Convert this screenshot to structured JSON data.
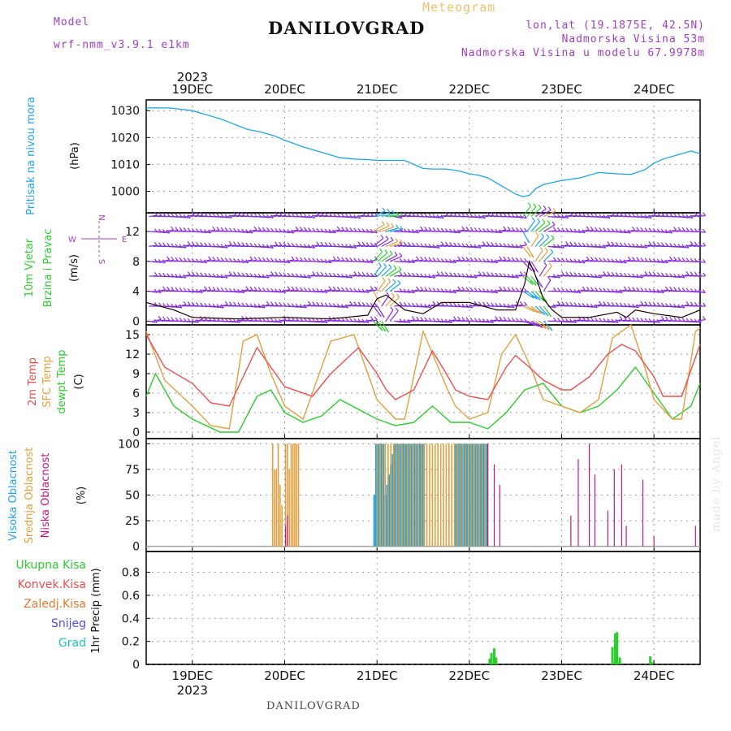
{
  "header": {
    "model_label": "Model",
    "model_name": "wrf-nmm_v3.9.1 e1km",
    "title": "DANILOVGRAD",
    "meteogram": "Meteogram",
    "lonlat": "lon,lat (19.1875E, 42.5N)",
    "elevation": "Nadmorska Visina 53m",
    "model_elevation": "Nadmorska Visina u modelu 67.9978m"
  },
  "footer": {
    "station": "DANILOVGRAD",
    "credit": "made by Angel"
  },
  "colors": {
    "pressure": "#1fa3e8",
    "temp2m": "#e85050",
    "sfc": "#e0a040",
    "dewpt": "#2ecc2e",
    "high_cloud": "#1fa3e8",
    "mid_cloud": "#e0a040",
    "low_cloud": "#c01880",
    "total_precip": "#2ecc2e",
    "conv_precip": "#e85050",
    "frozen": "#e07a30",
    "snow": "#5050e0",
    "hail": "#20c0c0",
    "wind_purple": "#8a2be2",
    "grid": "#9a9a9a"
  },
  "chart_data": {
    "type": "line",
    "x_axis": {
      "year": "2023",
      "ticks": [
        "19DEC",
        "20DEC",
        "21DEC",
        "22DEC",
        "23DEC",
        "24DEC"
      ],
      "range_days": [
        18.5,
        24.5
      ]
    },
    "panels": [
      {
        "id": "pressure",
        "ylabel": [
          "Pritisak na nivou mora",
          "(hPa)"
        ],
        "ylim": [
          992,
          1034
        ],
        "yticks": [
          1000,
          1010,
          1020,
          1030
        ],
        "series": [
          {
            "name": "Pritisak na nivou mora",
            "x": [
              18.5,
              18.6,
              18.75,
              19.0,
              19.15,
              19.3,
              19.45,
              19.6,
              19.75,
              19.9,
              20.0,
              20.2,
              20.4,
              20.6,
              20.75,
              20.9,
              21.0,
              21.2,
              21.3,
              21.5,
              21.6,
              21.75,
              21.9,
              22.0,
              22.1,
              22.2,
              22.3,
              22.4,
              22.5,
              22.58,
              22.65,
              22.72,
              22.8,
              23.0,
              23.2,
              23.4,
              23.6,
              23.75,
              23.9,
              24.0,
              24.1,
              24.3,
              24.4,
              24.5
            ],
            "values": [
              1031,
              1031,
              1031,
              1030,
              1028.5,
              1027,
              1025,
              1023,
              1022,
              1020.5,
              1019,
              1016.5,
              1014.5,
              1012.5,
              1012,
              1011.8,
              1011.5,
              1011.5,
              1011.5,
              1008.5,
              1008.3,
              1008.3,
              1007.5,
              1006.5,
              1006,
              1005,
              1003,
              1001,
              999,
              998,
              998.5,
              1001,
              1002.5,
              1004,
              1005,
              1007,
              1006.5,
              1006.3,
              1008,
              1010.5,
              1012,
              1014,
              1015,
              1014
            ]
          }
        ]
      },
      {
        "id": "wind",
        "ylabel": [
          "10m Vjetar",
          "Brzina i Pravac",
          "(m/s)"
        ],
        "compass": [
          "N",
          "W",
          "E",
          "S"
        ],
        "ylim": [
          -0.5,
          14.5
        ],
        "yticks": [
          0,
          4,
          8,
          12
        ],
        "barb_levels": [
          0,
          2,
          4,
          6,
          8,
          10,
          12,
          14
        ],
        "series": [
          {
            "name": "10m wind speed",
            "x": [
              18.5,
              18.8,
              19.0,
              19.5,
              20.0,
              20.5,
              20.9,
              21.0,
              21.1,
              21.3,
              21.5,
              21.7,
              22.0,
              22.3,
              22.5,
              22.6,
              22.65,
              22.72,
              22.8,
              22.9,
              23.0,
              23.3,
              23.6,
              23.7,
              23.8,
              24.0,
              24.3,
              24.5
            ],
            "values": [
              2.5,
              1.5,
              0.5,
              0.3,
              0.5,
              0.3,
              0.8,
              3,
              3.5,
              1.5,
              1,
              2.5,
              2.5,
              1.5,
              1.5,
              5,
              8,
              6,
              3,
              1.5,
              0.5,
              0.5,
              1.2,
              0.5,
              1.5,
              1,
              0.5,
              1.5
            ]
          }
        ]
      },
      {
        "id": "temperature",
        "ylabel": [
          "2m Temp",
          "SFC Temp",
          "dewpt Temp",
          "(C)"
        ],
        "ylim": [
          -1,
          16.5
        ],
        "yticks": [
          0,
          3,
          6,
          9,
          12,
          15
        ],
        "series": [
          {
            "name": "2m Temp",
            "x": [
              18.5,
              18.7,
              19.0,
              19.2,
              19.4,
              19.5,
              19.7,
              19.85,
              20.0,
              20.3,
              20.5,
              20.8,
              21.0,
              21.1,
              21.2,
              21.4,
              21.6,
              21.75,
              21.85,
              22.0,
              22.2,
              22.4,
              22.5,
              22.65,
              22.8,
              23.0,
              23.1,
              23.3,
              23.5,
              23.65,
              23.8,
              24.0,
              24.1,
              24.3,
              24.5
            ],
            "values": [
              15,
              10,
              7.5,
              4.5,
              4,
              7,
              13,
              10,
              7,
              5.5,
              9,
              13,
              9,
              6.5,
              5,
              6.5,
              12.5,
              9,
              6.5,
              5.5,
              5,
              10,
              11.8,
              10,
              8,
              6.5,
              6.5,
              8.5,
              12,
              13.5,
              12.5,
              8.5,
              5.5,
              5.5,
              13.5
            ]
          },
          {
            "name": "SFC Temp",
            "x": [
              18.5,
              18.7,
              19.0,
              19.2,
              19.4,
              19.55,
              19.7,
              19.85,
              20.0,
              20.2,
              20.5,
              20.75,
              21.0,
              21.2,
              21.3,
              21.5,
              21.75,
              21.85,
              22.0,
              22.2,
              22.35,
              22.5,
              22.65,
              22.8,
              23.0,
              23.2,
              23.4,
              23.55,
              23.75,
              23.9,
              24.0,
              24.2,
              24.3,
              24.45,
              24.5
            ],
            "values": [
              15.5,
              8,
              4,
              1,
              0.5,
              14,
              15,
              9,
              4,
              2,
              14,
              15,
              5,
              2,
              2,
              15.5,
              7,
              4,
              2,
              3,
              12,
              15,
              10.5,
              5,
              4,
              3,
              5,
              14.5,
              16.5,
              10,
              5,
              2,
              2,
              15.5,
              16
            ]
          },
          {
            "name": "dewpt Temp",
            "x": [
              18.5,
              18.6,
              18.8,
              19.0,
              19.3,
              19.5,
              19.7,
              19.85,
              20.0,
              20.2,
              20.4,
              20.6,
              20.8,
              21.0,
              21.2,
              21.4,
              21.6,
              21.8,
              22.0,
              22.2,
              22.4,
              22.6,
              22.8,
              23.0,
              23.2,
              23.4,
              23.6,
              23.8,
              24.0,
              24.2,
              24.4,
              24.5
            ],
            "values": [
              5.5,
              9,
              4,
              2,
              0,
              0,
              5.5,
              6.5,
              3,
              1.5,
              2.5,
              5,
              3.5,
              2,
              1,
              1.5,
              4,
              1.5,
              1.5,
              0.5,
              3,
              6.5,
              7.5,
              4,
              3,
              4,
              6.5,
              10,
              6,
              2,
              4,
              7.5
            ]
          }
        ]
      },
      {
        "id": "cloud",
        "ylabel": [
          "Visoka Oblacnost",
          "Srednja Oblacnost",
          "Niska Oblacnost",
          "(%)"
        ],
        "ylim": [
          -5,
          105
        ],
        "yticks": [
          0,
          25,
          50,
          75,
          100
        ],
        "series": [
          {
            "name": "Visoka Oblacnost",
            "x": [
              20.97,
              20.99,
              21.01,
              21.03,
              21.05,
              21.07,
              21.09,
              21.11,
              21.13,
              21.15,
              21.17,
              21.19,
              21.21,
              21.23,
              21.25,
              21.27,
              21.29,
              21.31,
              21.33,
              21.35,
              21.37,
              21.39,
              21.41,
              21.43,
              21.45,
              21.47,
              21.49,
              21.51,
              21.53,
              21.55,
              21.57,
              21.59,
              21.61,
              21.63,
              21.65,
              21.67,
              21.69,
              21.71,
              21.73,
              21.75,
              21.77,
              21.79,
              21.81,
              21.83,
              21.85,
              21.87,
              21.89,
              21.91,
              21.93,
              21.95,
              21.97,
              21.99,
              22.01,
              22.03,
              22.05,
              22.07,
              22.09,
              22.11,
              22.13,
              22.15,
              22.17,
              22.19
            ],
            "values": [
              50,
              100,
              100,
              100,
              100,
              100,
              50,
              60,
              70,
              80,
              90,
              100,
              100,
              100,
              100,
              100,
              100,
              100,
              100,
              100,
              100,
              100,
              100,
              100,
              100,
              100,
              100,
              100,
              0,
              0,
              0,
              0,
              0,
              0,
              0,
              0,
              0,
              0,
              0,
              0,
              0,
              0,
              0,
              0,
              100,
              100,
              100,
              100,
              100,
              100,
              100,
              100,
              100,
              100,
              100,
              100,
              100,
              100,
              100,
              100,
              100,
              100
            ]
          },
          {
            "name": "Srednja Oblacnost",
            "x": [
              19.87,
              19.89,
              19.91,
              19.93,
              19.95,
              19.97,
              19.99,
              20.01,
              20.03,
              20.05,
              20.07,
              20.09,
              20.11,
              20.13,
              20.15,
              20.17,
              20.19,
              20.21,
              20.23,
              20.25,
              21.0,
              21.03,
              21.06,
              21.09,
              21.12,
              21.15,
              21.18,
              21.21,
              21.24,
              21.27,
              21.3,
              21.33,
              21.36,
              21.39,
              21.42,
              21.45,
              21.48,
              21.51,
              21.54,
              21.57,
              21.6,
              21.63,
              21.66,
              21.69,
              21.72,
              21.75,
              21.78,
              21.81,
              21.84,
              21.87,
              21.9,
              21.93,
              21.96,
              21.99,
              22.02,
              22.05,
              22.08,
              22.11,
              22.14,
              22.17,
              22.2
            ],
            "values": [
              100,
              75,
              75,
              100,
              60,
              40,
              0,
              100,
              100,
              75,
              100,
              100,
              100,
              100,
              100,
              0,
              0,
              0,
              0,
              0,
              100,
              100,
              100,
              100,
              100,
              100,
              100,
              100,
              100,
              100,
              100,
              100,
              100,
              100,
              100,
              100,
              100,
              100,
              100,
              100,
              100,
              100,
              100,
              100,
              100,
              100,
              100,
              100,
              100,
              100,
              100,
              100,
              100,
              100,
              100,
              100,
              100,
              100,
              100,
              100,
              100
            ]
          },
          {
            "name": "Niska Oblacnost",
            "x": [
              20.01,
              20.03,
              22.2,
              22.27,
              22.33,
              23.1,
              23.18,
              23.3,
              23.36,
              23.5,
              23.57,
              23.65,
              23.7,
              23.88,
              24.0,
              24.45
            ],
            "values": [
              20,
              30,
              100,
              80,
              60,
              30,
              85,
              100,
              70,
              35,
              75,
              80,
              20,
              65,
              10,
              20
            ]
          }
        ]
      },
      {
        "id": "precip",
        "ylabel": [
          "1hr Precip (mm)"
        ],
        "legend": [
          "Ukupna Kisa",
          "Konvek.Kisa",
          "Zaledj.Kisa",
          "Snijeg",
          "Grad"
        ],
        "ylim": [
          0,
          0.98
        ],
        "yticks": [
          0,
          0.2,
          0.4,
          0.6,
          0.8
        ],
        "series": [
          {
            "name": "Ukupna Kisa",
            "x": [
              22.22,
              22.24,
              22.27,
              22.29,
              23.55,
              23.58,
              23.6,
              23.63,
              23.96,
              23.98
            ],
            "values": [
              0.05,
              0.1,
              0.14,
              0.06,
              0.15,
              0.27,
              0.28,
              0.06,
              0.07,
              0.02
            ]
          }
        ]
      }
    ]
  }
}
